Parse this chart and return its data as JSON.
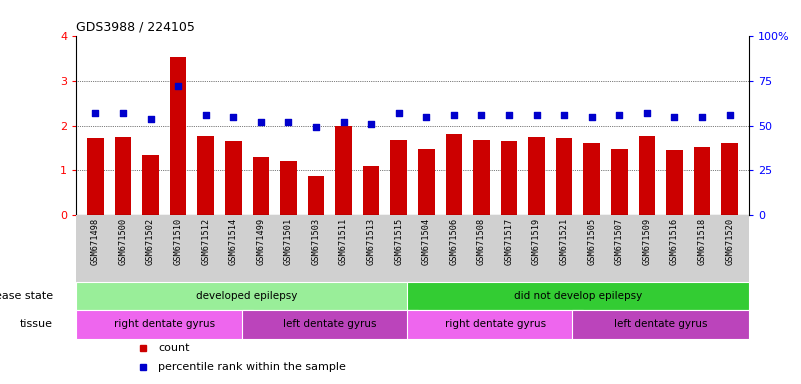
{
  "title": "GDS3988 / 224105",
  "samples": [
    "GSM671498",
    "GSM671500",
    "GSM671502",
    "GSM671510",
    "GSM671512",
    "GSM671514",
    "GSM671499",
    "GSM671501",
    "GSM671503",
    "GSM671511",
    "GSM671513",
    "GSM671515",
    "GSM671504",
    "GSM671506",
    "GSM671508",
    "GSM671517",
    "GSM671519",
    "GSM671521",
    "GSM671505",
    "GSM671507",
    "GSM671509",
    "GSM671516",
    "GSM671518",
    "GSM671520"
  ],
  "bar_values": [
    1.72,
    1.75,
    1.35,
    3.55,
    1.77,
    1.65,
    1.3,
    1.2,
    0.88,
    2.0,
    1.1,
    1.68,
    1.47,
    1.82,
    1.68,
    1.65,
    1.75,
    1.72,
    1.62,
    1.47,
    1.77,
    1.45,
    1.52,
    1.6
  ],
  "percentile_values": [
    57,
    57,
    54,
    72,
    56,
    55,
    52,
    52,
    49,
    52,
    51,
    57,
    55,
    56,
    56,
    56,
    56,
    56,
    55,
    56,
    57,
    55,
    55,
    56
  ],
  "bar_color": "#cc0000",
  "dot_color": "#0000cc",
  "ylim_left": [
    0,
    4
  ],
  "ylim_right": [
    0,
    100
  ],
  "yticks_left": [
    0,
    1,
    2,
    3,
    4
  ],
  "yticks_right": [
    0,
    25,
    50,
    75,
    100
  ],
  "xlabel_bgcolor": "#d0d0d0",
  "disease_state_groups": [
    {
      "label": "developed epilepsy",
      "start": 0,
      "end": 12,
      "color": "#99ee99"
    },
    {
      "label": "did not develop epilepsy",
      "start": 12,
      "end": 24,
      "color": "#33cc33"
    }
  ],
  "tissue_groups": [
    {
      "label": "right dentate gyrus",
      "start": 0,
      "end": 6,
      "color": "#ee66ee"
    },
    {
      "label": "left dentate gyrus",
      "start": 6,
      "end": 12,
      "color": "#bb44bb"
    },
    {
      "label": "right dentate gyrus",
      "start": 12,
      "end": 18,
      "color": "#ee66ee"
    },
    {
      "label": "left dentate gyrus",
      "start": 18,
      "end": 24,
      "color": "#bb44bb"
    }
  ],
  "disease_label": "disease state",
  "tissue_label": "tissue",
  "legend_items": [
    {
      "label": "count",
      "color": "#cc0000"
    },
    {
      "label": "percentile rank within the sample",
      "color": "#0000cc"
    }
  ]
}
